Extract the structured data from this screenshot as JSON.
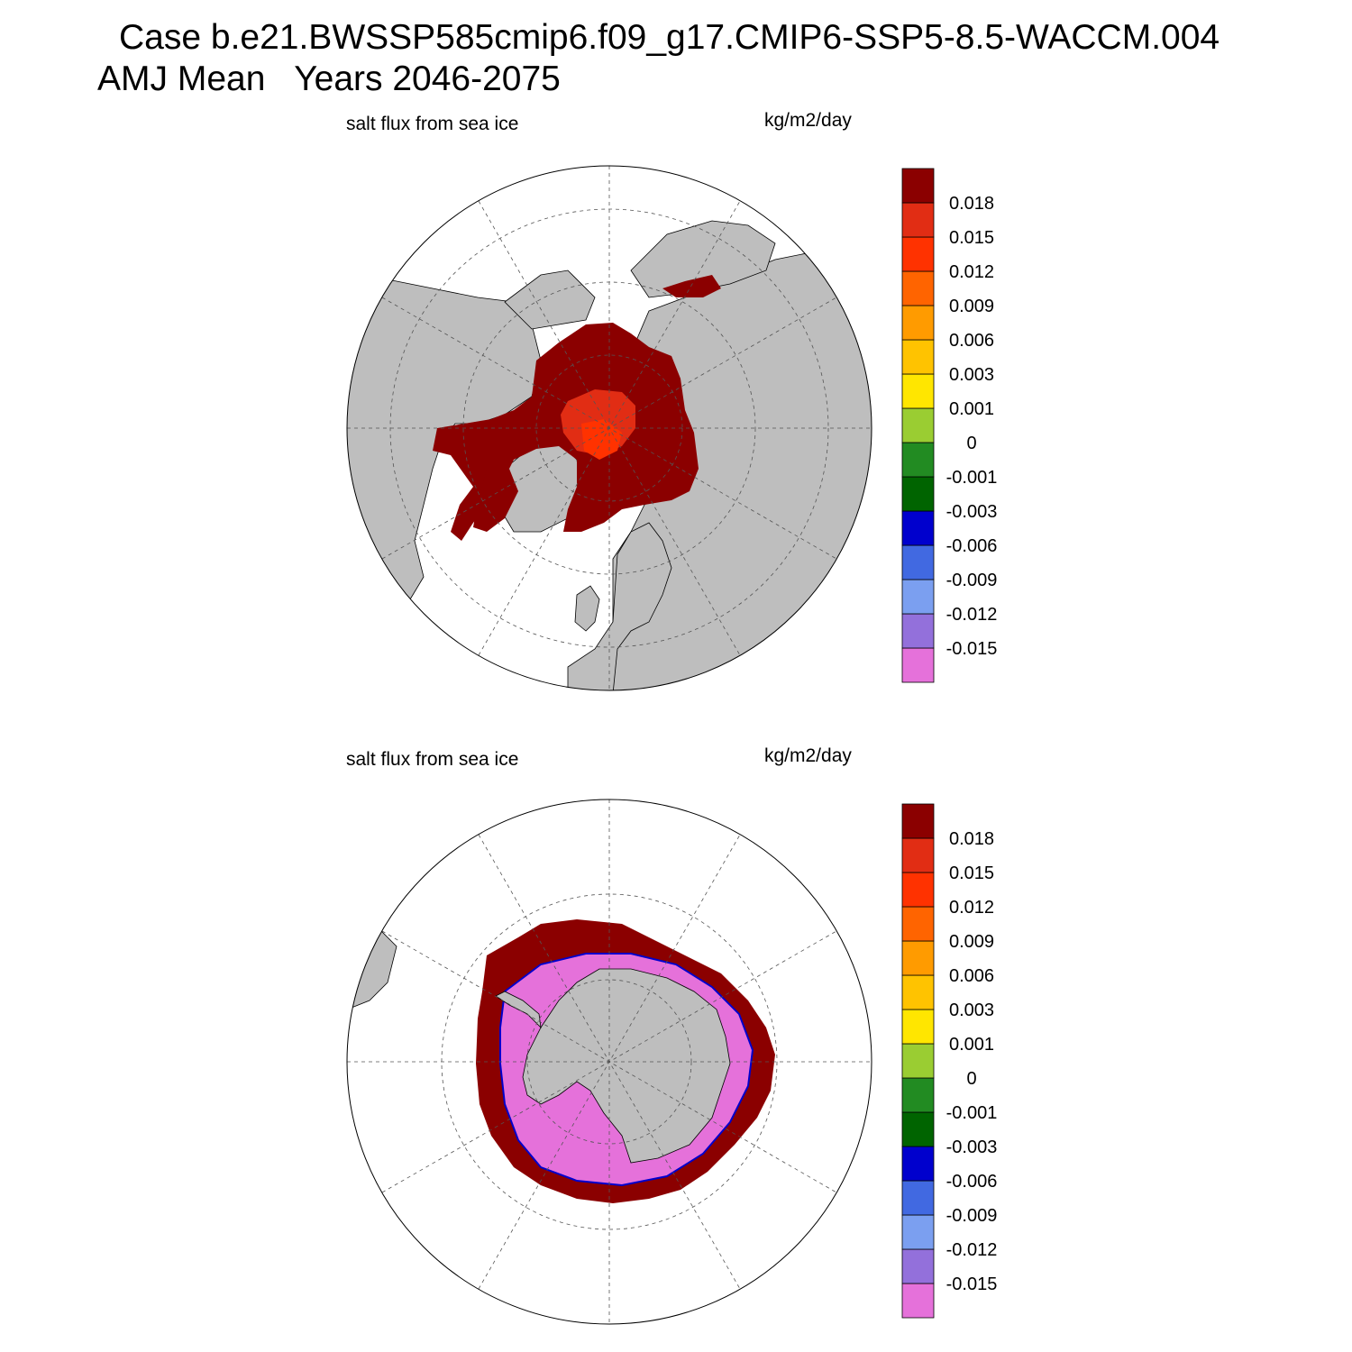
{
  "header": {
    "case_title": "Case b.e21.BWSSP585cmip6.f09_g17.CMIP6-SSP5-8.5-WACCM.004",
    "period": "AMJ Mean   Years 2046-2075"
  },
  "colors": {
    "land": "#bebebe",
    "ocean": "#ffffff",
    "grid": "#555555"
  },
  "colorbar": {
    "colors": [
      "#e571da",
      "#9370db",
      "#7b9ff0",
      "#4169e1",
      "#0000cd",
      "#006400",
      "#228b22",
      "#9acd32",
      "#ffe600",
      "#ffc300",
      "#ff9b00",
      "#ff6400",
      "#ff3200",
      "#e12d14",
      "#8b0000"
    ],
    "labels": [
      "-0.015",
      "-0.012",
      "-0.009",
      "-0.006",
      "-0.003",
      "-0.001",
      "0",
      "0.001",
      "0.003",
      "0.006",
      "0.009",
      "0.012",
      "0.015",
      "0.018"
    ]
  },
  "panels": [
    {
      "id": "arctic",
      "hemisphere": "north",
      "variable_label": "salt flux from sea ice",
      "units_label": "kg/m2/day"
    },
    {
      "id": "antarctic",
      "hemisphere": "south",
      "variable_label": "salt flux from sea ice",
      "units_label": "kg/m2/day"
    }
  ]
}
